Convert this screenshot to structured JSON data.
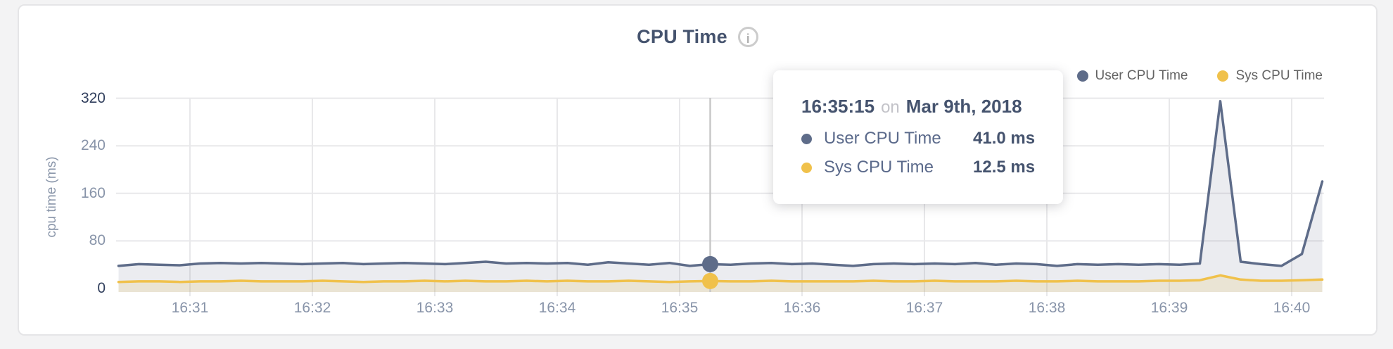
{
  "card": {
    "title": "CPU Time",
    "info_icon": "i"
  },
  "legend": {
    "items": [
      {
        "label": "User CPU Time",
        "color": "#5e6c89"
      },
      {
        "label": "Sys CPU Time",
        "color": "#f0c14b"
      }
    ]
  },
  "tooltip": {
    "time": "16:35:15",
    "connector": "on",
    "date": "Mar 9th, 2018",
    "rows": [
      {
        "label": "User CPU Time",
        "value": "41.0 ms",
        "color": "#5e6c89"
      },
      {
        "label": "Sys CPU Time",
        "value": "12.5 ms",
        "color": "#f0c14b"
      }
    ]
  },
  "chart_data": {
    "type": "area",
    "title": "CPU Time",
    "ylabel": "cpu time (ms)",
    "xlabel": "",
    "ylim": [
      0,
      320
    ],
    "y_ticks": [
      0,
      80,
      160,
      240,
      320
    ],
    "x_ticks": [
      "16:31",
      "16:32",
      "16:33",
      "16:34",
      "16:35",
      "16:36",
      "16:37",
      "16:38",
      "16:39",
      "16:40"
    ],
    "grid": true,
    "legend_position": "top-right",
    "x": [
      "16:30:25",
      "16:30:35",
      "16:30:45",
      "16:30:55",
      "16:31:05",
      "16:31:15",
      "16:31:25",
      "16:31:35",
      "16:31:45",
      "16:31:55",
      "16:32:05",
      "16:32:15",
      "16:32:25",
      "16:32:35",
      "16:32:45",
      "16:32:55",
      "16:33:05",
      "16:33:15",
      "16:33:25",
      "16:33:35",
      "16:33:45",
      "16:33:55",
      "16:34:05",
      "16:34:15",
      "16:34:25",
      "16:34:35",
      "16:34:45",
      "16:34:55",
      "16:35:05",
      "16:35:15",
      "16:35:25",
      "16:35:35",
      "16:35:45",
      "16:35:55",
      "16:36:05",
      "16:36:15",
      "16:36:25",
      "16:36:35",
      "16:36:45",
      "16:36:55",
      "16:37:05",
      "16:37:15",
      "16:37:25",
      "16:37:35",
      "16:37:45",
      "16:37:55",
      "16:38:05",
      "16:38:15",
      "16:38:25",
      "16:38:35",
      "16:38:45",
      "16:38:55",
      "16:39:05",
      "16:39:15",
      "16:39:25",
      "16:39:35",
      "16:39:45",
      "16:39:55",
      "16:40:05",
      "16:40:15"
    ],
    "series": [
      {
        "name": "User CPU Time",
        "color": "#5e6c89",
        "fill": "rgba(100,112,140,0.13)",
        "values": [
          38,
          41,
          40,
          39,
          42,
          43,
          42,
          43,
          42,
          41,
          42,
          43,
          41,
          42,
          43,
          42,
          41,
          43,
          45,
          42,
          43,
          42,
          43,
          40,
          44,
          42,
          40,
          43,
          38,
          41,
          40,
          42,
          43,
          41,
          42,
          40,
          38,
          41,
          42,
          41,
          42,
          41,
          43,
          40,
          42,
          41,
          38,
          41,
          40,
          41,
          40,
          41,
          40,
          42,
          315,
          45,
          41,
          38,
          58,
          180
        ]
      },
      {
        "name": "Sys CPU Time",
        "color": "#f0c14b",
        "fill": "rgba(235,195,90,0.18)",
        "values": [
          11,
          12,
          12,
          11,
          12,
          12,
          13,
          12,
          12,
          12,
          13,
          12,
          11,
          12,
          12,
          13,
          12,
          13,
          12,
          12,
          13,
          12,
          13,
          12,
          12,
          13,
          12,
          11,
          12,
          12.5,
          12,
          12,
          13,
          12,
          12,
          12,
          12,
          13,
          12,
          12,
          13,
          12,
          12,
          12,
          13,
          12,
          12,
          13,
          12,
          12,
          12,
          13,
          13,
          14,
          22,
          15,
          13,
          13,
          14,
          15
        ]
      }
    ],
    "hover": {
      "time": "16:35:15",
      "values": [
        41.0,
        12.5
      ]
    }
  },
  "colors": {
    "grid": "#e8e8ea",
    "hover_line": "#c8c8c8",
    "tick_strong": "#32405e"
  }
}
